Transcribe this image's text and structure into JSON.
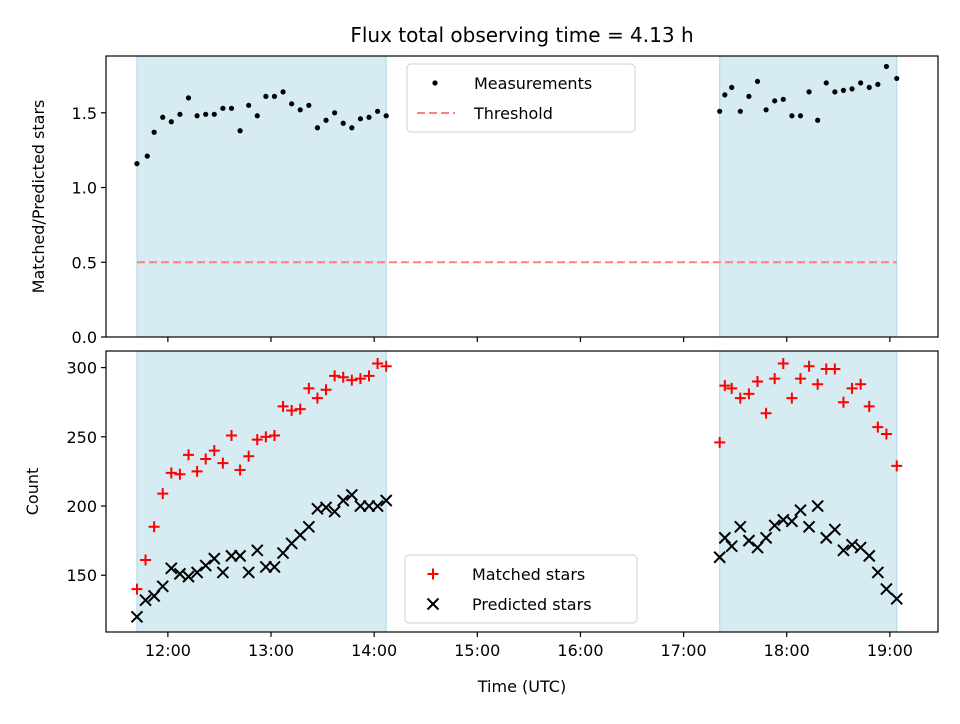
{
  "chart_data": [
    {
      "type": "scatter",
      "title": "Flux total observing time = 4.13 h",
      "ylabel": "Matched/Predicted stars",
      "xlabel": "",
      "xlim": [
        "11:24",
        "19:28"
      ],
      "ylim": [
        0,
        1.88
      ],
      "yticks": [
        "0.0",
        "0.5",
        "1.0",
        "1.5"
      ],
      "grid": false,
      "legend": "upper-center",
      "shaded_intervals": [
        [
          "11:42",
          "14:07"
        ],
        [
          "17:21",
          "19:04"
        ]
      ],
      "threshold": {
        "name": "Threshold",
        "value": 0.5,
        "color": "#ff7f7f"
      },
      "series": [
        {
          "name": "Measurements",
          "color": "#000000",
          "marker": "dot",
          "x": [
            "11:42",
            "11:48",
            "11:52",
            "11:57",
            "12:02",
            "12:07",
            "12:12",
            "12:17",
            "12:22",
            "12:27",
            "12:32",
            "12:37",
            "12:42",
            "12:47",
            "12:52",
            "12:57",
            "13:02",
            "13:07",
            "13:12",
            "13:17",
            "13:22",
            "13:27",
            "13:32",
            "13:37",
            "13:42",
            "13:47",
            "13:52",
            "13:57",
            "14:02",
            "14:07",
            "17:21",
            "17:24",
            "17:28",
            "17:33",
            "17:38",
            "17:43",
            "17:48",
            "17:53",
            "17:58",
            "18:03",
            "18:08",
            "18:13",
            "18:18",
            "18:23",
            "18:28",
            "18:33",
            "18:38",
            "18:43",
            "18:48",
            "18:53",
            "18:58",
            "19:04"
          ],
          "y": [
            1.16,
            1.21,
            1.37,
            1.47,
            1.44,
            1.49,
            1.6,
            1.48,
            1.49,
            1.49,
            1.53,
            1.53,
            1.38,
            1.55,
            1.48,
            1.61,
            1.61,
            1.64,
            1.56,
            1.52,
            1.55,
            1.4,
            1.45,
            1.5,
            1.43,
            1.4,
            1.46,
            1.47,
            1.51,
            1.48,
            1.51,
            1.62,
            1.67,
            1.51,
            1.61,
            1.71,
            1.52,
            1.58,
            1.59,
            1.48,
            1.48,
            1.64,
            1.45,
            1.7,
            1.64,
            1.65,
            1.66,
            1.7,
            1.67,
            1.69,
            1.81,
            1.73
          ]
        }
      ]
    },
    {
      "type": "scatter",
      "title": "",
      "ylabel": "Count",
      "xlabel": "Time (UTC)",
      "xlim": [
        "11:24",
        "19:28"
      ],
      "ylim": [
        109,
        312
      ],
      "yticks": [
        "150",
        "200",
        "250",
        "300"
      ],
      "xticks": [
        "12:00",
        "13:00",
        "14:00",
        "15:00",
        "16:00",
        "17:00",
        "18:00",
        "19:00"
      ],
      "grid": false,
      "legend": "lower-center",
      "shaded_intervals": [
        [
          "11:42",
          "14:07"
        ],
        [
          "17:21",
          "19:04"
        ]
      ],
      "series": [
        {
          "name": "Matched stars",
          "color": "#ff0000",
          "marker": "plus",
          "x": [
            "11:42",
            "11:47",
            "11:52",
            "11:57",
            "12:02",
            "12:07",
            "12:12",
            "12:17",
            "12:22",
            "12:27",
            "12:32",
            "12:37",
            "12:42",
            "12:47",
            "12:52",
            "12:57",
            "13:02",
            "13:07",
            "13:12",
            "13:17",
            "13:22",
            "13:27",
            "13:32",
            "13:37",
            "13:42",
            "13:47",
            "13:52",
            "13:57",
            "14:02",
            "14:07",
            "17:21",
            "17:24",
            "17:28",
            "17:33",
            "17:38",
            "17:43",
            "17:48",
            "17:53",
            "17:58",
            "18:03",
            "18:08",
            "18:13",
            "18:18",
            "18:23",
            "18:28",
            "18:33",
            "18:38",
            "18:43",
            "18:48",
            "18:53",
            "18:58",
            "19:04"
          ],
          "y": [
            140,
            161,
            185,
            209,
            224,
            223,
            237,
            225,
            234,
            240,
            231,
            251,
            226,
            236,
            248,
            250,
            251,
            272,
            269,
            270,
            285,
            278,
            284,
            294,
            293,
            291,
            292,
            294,
            303,
            301,
            246,
            287,
            285,
            278,
            281,
            290,
            267,
            292,
            303,
            278,
            292,
            301,
            288,
            299,
            299,
            275,
            285,
            288,
            272,
            257,
            252,
            229
          ]
        },
        {
          "name": "Predicted stars",
          "color": "#000000",
          "marker": "x",
          "x": [
            "11:42",
            "11:47",
            "11:52",
            "11:57",
            "12:02",
            "12:07",
            "12:12",
            "12:17",
            "12:22",
            "12:27",
            "12:32",
            "12:37",
            "12:42",
            "12:47",
            "12:52",
            "12:57",
            "13:02",
            "13:07",
            "13:12",
            "13:17",
            "13:22",
            "13:27",
            "13:32",
            "13:37",
            "13:42",
            "13:47",
            "13:52",
            "13:57",
            "14:02",
            "14:07",
            "17:21",
            "17:24",
            "17:28",
            "17:33",
            "17:38",
            "17:43",
            "17:48",
            "17:53",
            "17:58",
            "18:03",
            "18:08",
            "18:13",
            "18:18",
            "18:23",
            "18:28",
            "18:33",
            "18:38",
            "18:43",
            "18:48",
            "18:53",
            "18:58",
            "19:04"
          ],
          "y": [
            120,
            132,
            135,
            142,
            155,
            151,
            149,
            152,
            157,
            162,
            152,
            164,
            164,
            152,
            168,
            156,
            156,
            166,
            173,
            179,
            185,
            198,
            199,
            196,
            204,
            208,
            200,
            200,
            200,
            204,
            163,
            177,
            171,
            185,
            175,
            170,
            177,
            186,
            190,
            189,
            197,
            185,
            200,
            177,
            183,
            168,
            172,
            170,
            164,
            152,
            140,
            133
          ]
        }
      ]
    }
  ]
}
